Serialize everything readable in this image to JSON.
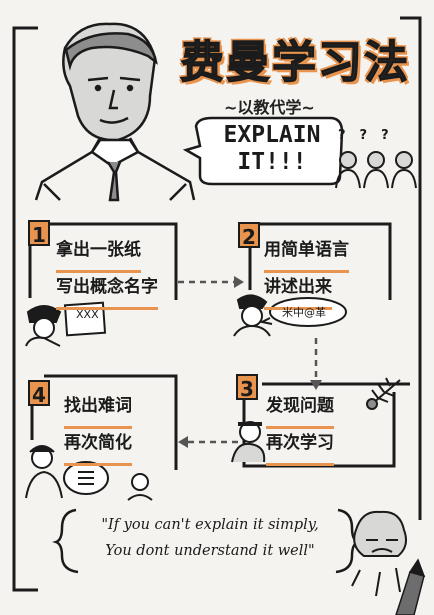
{
  "header": {
    "title": "费曼学习法",
    "subtitle": "~以教代学~",
    "speech": [
      "EXPLAIN",
      "IT!!!"
    ]
  },
  "steps": [
    {
      "number": "1",
      "lines": [
        "拿出一张纸",
        "写出概念名字"
      ]
    },
    {
      "number": "2",
      "lines": [
        "用简单语言",
        "讲述出来"
      ]
    },
    {
      "number": "3",
      "lines": [
        "发现问题",
        "再次学习"
      ]
    },
    {
      "number": "4",
      "lines": [
        "找出难词",
        "再次简化"
      ]
    }
  ],
  "quote": {
    "lines": [
      "\"If you can't explain it simply,",
      "You dont understand it well\""
    ]
  },
  "doodles": {
    "paper_note": "XXX",
    "bubble_note": "米中@革",
    "question_marks": [
      "?",
      "?",
      "?"
    ]
  },
  "colors": {
    "accent": "#e8934e",
    "ink": "#1b1b1b",
    "gray": "#8d8d8d",
    "paper": "#f4f3ef"
  }
}
